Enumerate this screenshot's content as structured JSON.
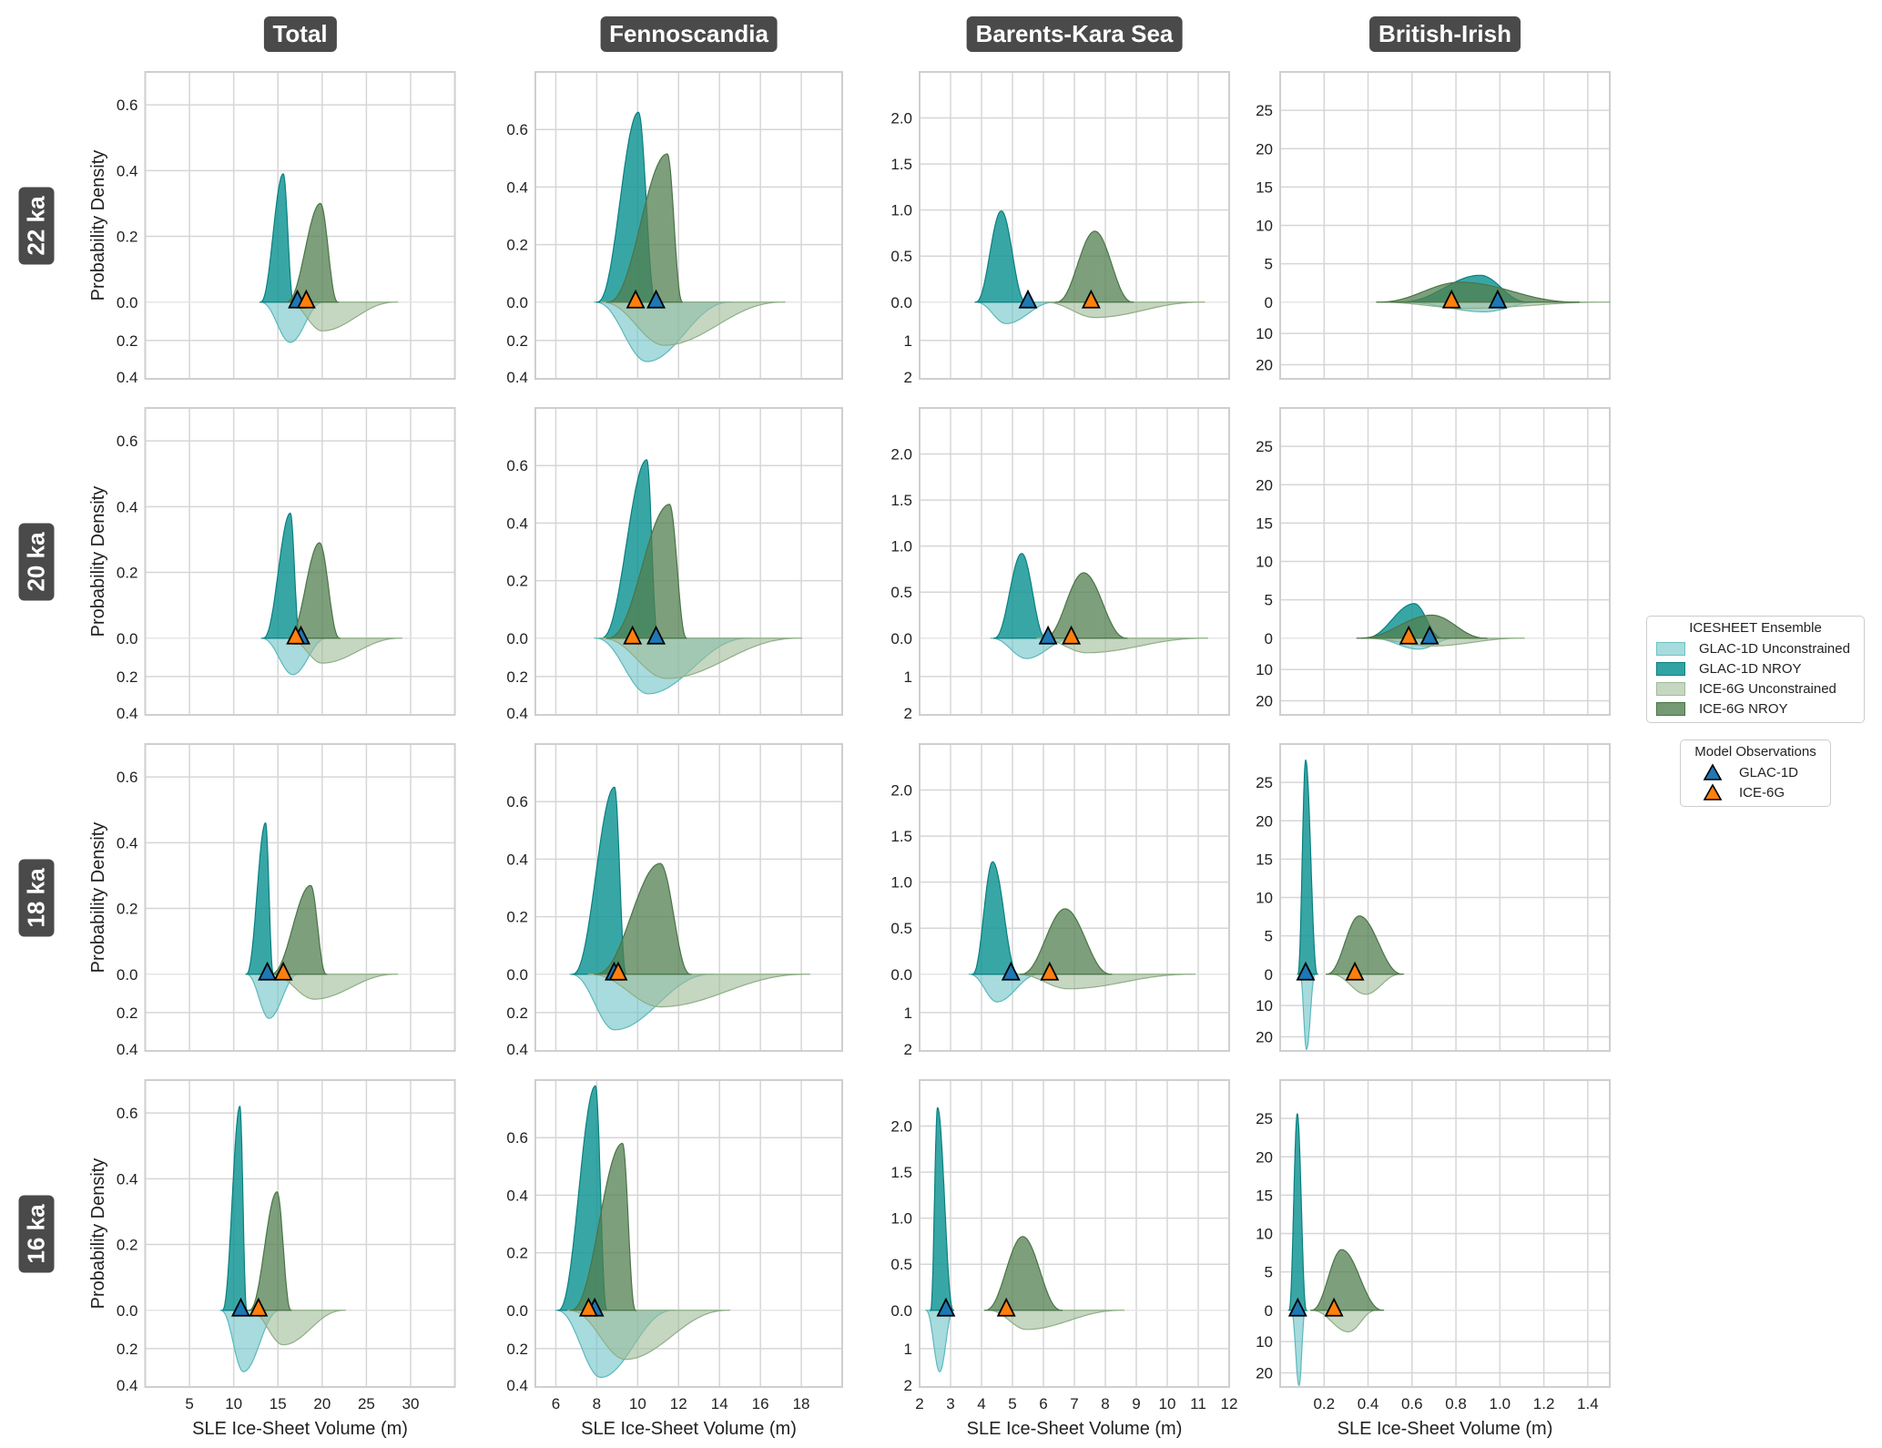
{
  "column_titles": [
    "Total",
    "Fennoscandia",
    "Barents-Kara Sea",
    "British-Irish"
  ],
  "row_titles": [
    "22 ka",
    "20 ka",
    "18 ka",
    "16 ka"
  ],
  "ylabel": "Probability Density",
  "xlabel": "SLE Ice-Sheet Volume (m)",
  "legend": {
    "ensemble_title": "ICESHEET Ensemble",
    "ensemble_items": [
      "GLAC-1D Unconstrained",
      "GLAC-1D NROY",
      "ICE-6G Unconstrained",
      "ICE-6G NROY"
    ],
    "obs_title": "Model Observations",
    "obs_items": [
      "GLAC-1D",
      "ICE-6G"
    ]
  },
  "colors": {
    "GLAC-1D Unconstrained": "#6cc3c7",
    "GLAC-1D NROY": "#0e9393",
    "ICE-6G Unconstrained": "#9fbb97",
    "ICE-6G NROY": "#527f4f",
    "obs_GLAC-1D": "#1f77b4",
    "obs_ICE-6G": "#ff7f0e"
  },
  "chart_data": {
    "type": "area",
    "description_of_series": "mirrored density plots: NROY above zero, Unconstrained below; each series = [min, mode, max, peak density]",
    "axes": [
      {
        "region": "Total",
        "xlim": [
          0,
          35
        ],
        "ylim_upper": 0.7,
        "ylim_lower": 0.4,
        "xticks": [
          {
            "v": 5,
            "label": "5"
          },
          {
            "v": 10,
            "label": "10"
          },
          {
            "v": 15,
            "label": "15"
          },
          {
            "v": 20,
            "label": "20"
          },
          {
            "v": 25,
            "label": "25"
          },
          {
            "v": 30,
            "label": "30"
          }
        ],
        "yticks_upper": [
          {
            "v": 0,
            "label": "0.0"
          },
          {
            "v": 0.2,
            "label": "0.2"
          },
          {
            "v": 0.4,
            "label": "0.4"
          },
          {
            "v": 0.6,
            "label": "0.6"
          }
        ],
        "yticks_lower": [
          {
            "v": 0.2,
            "label": "0.2"
          },
          {
            "v": 0.4,
            "label": "0.4"
          }
        ]
      },
      {
        "region": "Fennoscandia",
        "xlim": [
          5,
          20
        ],
        "ylim_upper": 0.8,
        "ylim_lower": 0.4,
        "xticks": [
          {
            "v": 6,
            "label": "6"
          },
          {
            "v": 8,
            "label": "8"
          },
          {
            "v": 10,
            "label": "10"
          },
          {
            "v": 12,
            "label": "12"
          },
          {
            "v": 14,
            "label": "14"
          },
          {
            "v": 16,
            "label": "16"
          },
          {
            "v": 18,
            "label": "18"
          }
        ],
        "yticks_upper": [
          {
            "v": 0,
            "label": "0.0"
          },
          {
            "v": 0.2,
            "label": "0.2"
          },
          {
            "v": 0.4,
            "label": "0.4"
          },
          {
            "v": 0.6,
            "label": "0.6"
          }
        ],
        "yticks_lower": [
          {
            "v": 0.2,
            "label": "0.2"
          },
          {
            "v": 0.4,
            "label": "0.4"
          }
        ]
      },
      {
        "region": "Barents-Kara Sea",
        "xlim": [
          2,
          12
        ],
        "ylim_upper": 2.5,
        "ylim_lower": 2,
        "xticks": [
          {
            "v": 2,
            "label": "2"
          },
          {
            "v": 3,
            "label": "3"
          },
          {
            "v": 4,
            "label": "4"
          },
          {
            "v": 5,
            "label": "5"
          },
          {
            "v": 6,
            "label": "6"
          },
          {
            "v": 7,
            "label": "7"
          },
          {
            "v": 8,
            "label": "8"
          },
          {
            "v": 9,
            "label": "9"
          },
          {
            "v": 10,
            "label": "10"
          },
          {
            "v": 11,
            "label": "11"
          },
          {
            "v": 12,
            "label": "12"
          }
        ],
        "yticks_upper": [
          {
            "v": 0,
            "label": "0.0"
          },
          {
            "v": 0.5,
            "label": "0.5"
          },
          {
            "v": 1,
            "label": "1.0"
          },
          {
            "v": 1.5,
            "label": "1.5"
          },
          {
            "v": 2,
            "label": "2.0"
          }
        ],
        "yticks_lower": [
          {
            "v": 1,
            "label": "1"
          },
          {
            "v": 2,
            "label": "2"
          }
        ]
      },
      {
        "region": "British-Irish",
        "xlim": [
          0,
          1.5
        ],
        "ylim_upper": 30,
        "ylim_lower": 24.5,
        "xticks": [
          {
            "v": 0.2,
            "label": "0.2"
          },
          {
            "v": 0.4,
            "label": "0.4"
          },
          {
            "v": 0.6,
            "label": "0.6"
          },
          {
            "v": 0.8,
            "label": "0.8"
          },
          {
            "v": 1.0,
            "label": "1.0"
          },
          {
            "v": 1.2,
            "label": "1.2"
          },
          {
            "v": 1.4,
            "label": "1.4"
          }
        ],
        "yticks_upper": [
          {
            "v": 0,
            "label": "0"
          },
          {
            "v": 5,
            "label": "5"
          },
          {
            "v": 10,
            "label": "10"
          },
          {
            "v": 15,
            "label": "15"
          },
          {
            "v": 20,
            "label": "20"
          },
          {
            "v": 25,
            "label": "25"
          }
        ],
        "yticks_lower": [
          {
            "v": 10,
            "label": "10"
          },
          {
            "v": 20,
            "label": "20"
          }
        ]
      }
    ],
    "panels": [
      {
        "period": "22 ka",
        "region": "Total",
        "series": {
          "GLAC-1D Unconstrained": [
            13,
            16.4,
            20.2,
            0.21
          ],
          "GLAC-1D NROY": [
            13,
            15.6,
            16.8,
            0.39
          ],
          "ICE-6G Unconstrained": [
            16.1,
            20,
            28.5,
            0.15
          ],
          "ICE-6G NROY": [
            15.9,
            19.8,
            21.8,
            0.3
          ]
        },
        "obs": {
          "GLAC-1D": 17.2,
          "ICE-6G": 18.2
        }
      },
      {
        "period": "22 ka",
        "region": "Fennoscandia",
        "series": {
          "GLAC-1D Unconstrained": [
            7.9,
            10.45,
            14.6,
            0.31
          ],
          "GLAC-1D NROY": [
            8.0,
            10.04,
            10.9,
            0.66
          ],
          "ICE-6G Unconstrained": [
            8.2,
            11.3,
            17.2,
            0.225
          ],
          "ICE-6G NROY": [
            8.5,
            11.45,
            12.2,
            0.515
          ]
        },
        "obs": {
          "GLAC-1D": 10.9,
          "ICE-6G": 9.9
        }
      },
      {
        "period": "22 ka",
        "region": "Barents-Kara Sea",
        "series": {
          "GLAC-1D Unconstrained": [
            3.8,
            4.8,
            6.4,
            0.56
          ],
          "GLAC-1D NROY": [
            3.8,
            4.64,
            5.45,
            0.99
          ],
          "ICE-6G Unconstrained": [
            6.0,
            7.66,
            11.2,
            0.4
          ],
          "ICE-6G NROY": [
            6.4,
            7.66,
            8.9,
            0.77
          ]
        },
        "obs": {
          "GLAC-1D": 5.5,
          "ICE-6G": 7.54
        }
      },
      {
        "period": "22 ka",
        "region": "British-Irish",
        "series": {
          "GLAC-1D Unconstrained": [
            0.54,
            0.93,
            1.18,
            3.1
          ],
          "GLAC-1D NROY": [
            0.54,
            0.91,
            1.13,
            3.5
          ],
          "ICE-6G Unconstrained": [
            0.44,
            0.85,
            1.5,
            2.0
          ],
          "ICE-6G NROY": [
            0.44,
            0.82,
            1.36,
            2.6
          ]
        },
        "obs": {
          "GLAC-1D": 0.99,
          "ICE-6G": 0.78
        }
      },
      {
        "period": "20 ka",
        "region": "Total",
        "series": {
          "GLAC-1D Unconstrained": [
            13.1,
            16.7,
            20.6,
            0.19
          ],
          "GLAC-1D NROY": [
            13.3,
            16.4,
            17.5,
            0.38
          ],
          "ICE-6G Unconstrained": [
            16.1,
            20,
            29,
            0.13
          ],
          "ICE-6G NROY": [
            16.1,
            19.7,
            22,
            0.29
          ]
        },
        "obs": {
          "GLAC-1D": 17.6,
          "ICE-6G": 17.0
        }
      },
      {
        "period": "20 ka",
        "region": "Fennoscandia",
        "series": {
          "GLAC-1D Unconstrained": [
            7.9,
            10.5,
            15.5,
            0.29
          ],
          "GLAC-1D NROY": [
            8.2,
            10.45,
            11,
            0.62
          ],
          "ICE-6G Unconstrained": [
            8.2,
            11.4,
            18,
            0.21
          ],
          "ICE-6G NROY": [
            8.5,
            11.56,
            12.4,
            0.465
          ]
        },
        "obs": {
          "GLAC-1D": 10.9,
          "ICE-6G": 9.75
        }
      },
      {
        "period": "20 ka",
        "region": "Barents-Kara Sea",
        "series": {
          "GLAC-1D Unconstrained": [
            4.3,
            5.45,
            7.0,
            0.53
          ],
          "GLAC-1D NROY": [
            4.4,
            5.3,
            6.1,
            0.92
          ],
          "ICE-6G Unconstrained": [
            5.8,
            7.4,
            11.3,
            0.38
          ],
          "ICE-6G NROY": [
            6.0,
            7.3,
            8.7,
            0.71
          ]
        },
        "obs": {
          "GLAC-1D": 6.15,
          "ICE-6G": 6.9
        }
      },
      {
        "period": "20 ka",
        "region": "British-Irish",
        "series": {
          "GLAC-1D Unconstrained": [
            0.41,
            0.63,
            0.8,
            3.5
          ],
          "GLAC-1D NROY": [
            0.38,
            0.61,
            0.74,
            4.5
          ],
          "ICE-6G Unconstrained": [
            0.37,
            0.69,
            1.11,
            2.5
          ],
          "ICE-6G NROY": [
            0.35,
            0.69,
            0.94,
            3.0
          ]
        },
        "obs": {
          "GLAC-1D": 0.68,
          "ICE-6G": 0.585
        }
      },
      {
        "period": "18 ka",
        "region": "Total",
        "series": {
          "GLAC-1D Unconstrained": [
            11.4,
            14,
            17.4,
            0.23
          ],
          "GLAC-1D NROY": [
            11.4,
            13.6,
            14.5,
            0.46
          ],
          "ICE-6G Unconstrained": [
            14.1,
            19.1,
            28.5,
            0.13
          ],
          "ICE-6G NROY": [
            14.1,
            18.7,
            20.5,
            0.27
          ]
        },
        "obs": {
          "GLAC-1D": 13.8,
          "ICE-6G": 15.6
        }
      },
      {
        "period": "18 ka",
        "region": "Fennoscandia",
        "series": {
          "GLAC-1D Unconstrained": [
            6.7,
            8.87,
            13.7,
            0.29
          ],
          "GLAC-1D NROY": [
            6.8,
            8.87,
            9.45,
            0.65
          ],
          "ICE-6G Unconstrained": [
            7.6,
            11.1,
            18.4,
            0.17
          ],
          "ICE-6G NROY": [
            7.9,
            11.1,
            12.6,
            0.385
          ]
        },
        "obs": {
          "GLAC-1D": 8.85,
          "ICE-6G": 9.05
        }
      },
      {
        "period": "18 ka",
        "region": "Barents-Kara Sea",
        "series": {
          "GLAC-1D Unconstrained": [
            3.6,
            4.5,
            5.9,
            0.72
          ],
          "GLAC-1D NROY": [
            3.7,
            4.36,
            5.2,
            1.22
          ],
          "ICE-6G Unconstrained": [
            5.1,
            6.8,
            10.9,
            0.38
          ],
          "ICE-6G NROY": [
            5.25,
            6.7,
            8.2,
            0.71
          ]
        },
        "obs": {
          "GLAC-1D": 4.95,
          "ICE-6G": 6.2
        }
      },
      {
        "period": "18 ka",
        "region": "British-Irish",
        "series": {
          "GLAC-1D Unconstrained": [
            0.09,
            0.12,
            0.16,
            24
          ],
          "GLAC-1D NROY": [
            0.08,
            0.116,
            0.17,
            27.9
          ],
          "ICE-6G Unconstrained": [
            0.23,
            0.39,
            0.55,
            6.4
          ],
          "ICE-6G NROY": [
            0.21,
            0.36,
            0.56,
            7.6
          ]
        },
        "obs": {
          "GLAC-1D": 0.116,
          "ICE-6G": 0.34
        }
      },
      {
        "period": "16 ka",
        "region": "Total",
        "series": {
          "GLAC-1D Unconstrained": [
            8.5,
            11.1,
            15.3,
            0.32
          ],
          "GLAC-1D NROY": [
            8.7,
            10.7,
            11.5,
            0.62
          ],
          "ICE-6G Unconstrained": [
            11.7,
            15.6,
            22.6,
            0.18
          ],
          "ICE-6G NROY": [
            11.7,
            14.9,
            16.5,
            0.36
          ]
        },
        "obs": {
          "GLAC-1D": 10.8,
          "ICE-6G": 12.8
        }
      },
      {
        "period": "16 ka",
        "region": "Fennoscandia",
        "series": {
          "GLAC-1D Unconstrained": [
            6.0,
            8.2,
            11.8,
            0.35
          ],
          "GLAC-1D NROY": [
            6.1,
            7.94,
            8.5,
            0.78
          ],
          "ICE-6G Unconstrained": [
            6.6,
            9.4,
            14.5,
            0.256
          ],
          "ICE-6G NROY": [
            6.7,
            9.26,
            9.9,
            0.58
          ]
        },
        "obs": {
          "GLAC-1D": 7.9,
          "ICE-6G": 7.6
        }
      },
      {
        "period": "16 ka",
        "region": "Barents-Kara Sea",
        "series": {
          "GLAC-1D Unconstrained": [
            2.2,
            2.65,
            3.1,
            1.6
          ],
          "GLAC-1D NROY": [
            2.35,
            2.58,
            3.1,
            2.2
          ],
          "ICE-6G Unconstrained": [
            4.2,
            5.45,
            8.6,
            0.5
          ],
          "ICE-6G NROY": [
            4.1,
            5.33,
            6.6,
            0.8
          ]
        },
        "obs": {
          "GLAC-1D": 2.85,
          "ICE-6G": 4.8
        }
      },
      {
        "period": "16 ka",
        "region": "British-Irish",
        "series": {
          "GLAC-1D Unconstrained": [
            0.05,
            0.086,
            0.115,
            24
          ],
          "GLAC-1D NROY": [
            0.04,
            0.078,
            0.12,
            25.6
          ],
          "ICE-6G Unconstrained": [
            0.14,
            0.31,
            0.44,
            6.9
          ],
          "ICE-6G NROY": [
            0.14,
            0.28,
            0.47,
            7.9
          ]
        },
        "obs": {
          "GLAC-1D": 0.08,
          "ICE-6G": 0.245
        }
      }
    ]
  }
}
